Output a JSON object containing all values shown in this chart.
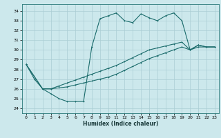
{
  "xlabel": "Humidex (Indice chaleur)",
  "bg_color": "#cce8ec",
  "grid_color": "#aacdd4",
  "line_color": "#1a6b6b",
  "xlim": [
    -0.5,
    23.5
  ],
  "ylim": [
    23.5,
    34.7
  ],
  "yticks": [
    24,
    25,
    26,
    27,
    28,
    29,
    30,
    31,
    32,
    33,
    34
  ],
  "xticks": [
    0,
    1,
    2,
    3,
    4,
    5,
    6,
    7,
    8,
    9,
    10,
    11,
    12,
    13,
    14,
    15,
    16,
    17,
    18,
    19,
    20,
    21,
    22,
    23
  ],
  "line1_x": [
    0,
    1,
    2,
    3,
    4,
    5,
    6,
    7,
    8,
    9,
    10,
    11,
    12,
    13,
    14,
    15,
    16,
    17,
    18,
    19,
    20,
    21,
    22,
    23
  ],
  "line1_y": [
    28.5,
    27.0,
    26.0,
    25.5,
    25.0,
    24.7,
    24.7,
    24.7,
    30.3,
    33.2,
    33.5,
    33.8,
    33.0,
    32.8,
    33.7,
    33.3,
    33.0,
    33.5,
    33.8,
    33.0,
    30.0,
    30.5,
    30.3,
    30.3
  ],
  "line2_x": [
    0,
    2,
    3,
    4,
    5,
    6,
    7,
    8,
    9,
    10,
    11,
    12,
    13,
    14,
    15,
    16,
    17,
    18,
    19,
    20,
    21,
    22,
    23
  ],
  "line2_y": [
    28.5,
    26.0,
    26.0,
    26.3,
    26.6,
    26.9,
    27.2,
    27.5,
    27.8,
    28.1,
    28.4,
    28.8,
    29.2,
    29.6,
    30.0,
    30.2,
    30.4,
    30.6,
    30.8,
    30.0,
    30.5,
    30.3,
    30.3
  ],
  "line3_x": [
    0,
    2,
    3,
    4,
    5,
    6,
    7,
    8,
    9,
    10,
    11,
    12,
    13,
    14,
    15,
    16,
    17,
    18,
    19,
    20,
    21,
    22,
    23
  ],
  "line3_y": [
    28.5,
    26.0,
    26.0,
    26.1,
    26.2,
    26.4,
    26.6,
    26.8,
    27.0,
    27.2,
    27.5,
    27.9,
    28.3,
    28.7,
    29.1,
    29.4,
    29.7,
    30.0,
    30.3,
    30.0,
    30.3,
    30.3,
    30.3
  ]
}
